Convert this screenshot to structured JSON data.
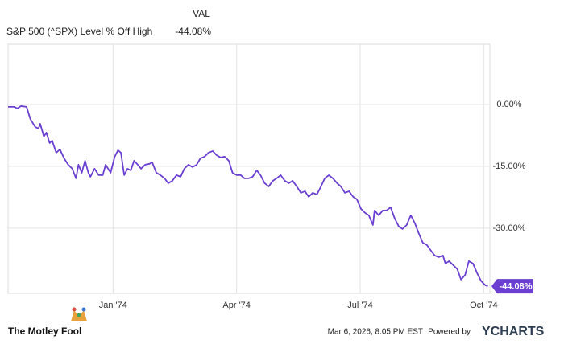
{
  "chart_data": {
    "type": "line",
    "legend_header": "VAL",
    "series": [
      {
        "name": "S&P 500 (^SPX) Level % Off High",
        "color": "#6a3fd1",
        "latest_label": "-44.08%",
        "x": [
          -2.55,
          -2.4,
          -2.32,
          -2.24,
          -2.1,
          -2.01,
          -1.89,
          -1.81,
          -1.77,
          -1.68,
          -1.62,
          -1.54,
          -1.48,
          -1.38,
          -1.29,
          -1.19,
          -1.09,
          -0.99,
          -0.9,
          -0.84,
          -0.76,
          -0.68,
          -0.6,
          -0.55,
          -0.45,
          -0.35,
          -0.25,
          -0.18,
          -0.06,
          0.04,
          0.12,
          0.19,
          0.27,
          0.35,
          0.43,
          0.51,
          0.6,
          0.68,
          0.78,
          0.88,
          0.95,
          1.05,
          1.15,
          1.25,
          1.34,
          1.44,
          1.54,
          1.64,
          1.73,
          1.83,
          1.93,
          2.03,
          2.12,
          2.22,
          2.32,
          2.42,
          2.51,
          2.61,
          2.71,
          2.81,
          2.9,
          3.0,
          3.1,
          3.19,
          3.29,
          3.39,
          3.49,
          3.58,
          3.68,
          3.78,
          3.88,
          3.97,
          4.07,
          4.17,
          4.27,
          4.36,
          4.46,
          4.56,
          4.66,
          4.75,
          4.85,
          4.95,
          5.05,
          5.14,
          5.24,
          5.34,
          5.44,
          5.53,
          5.63,
          5.73,
          5.83,
          5.92,
          6.02,
          6.12,
          6.21,
          6.31,
          6.35,
          6.45,
          6.55,
          6.64,
          6.74,
          6.84,
          6.94,
          7.03,
          7.13,
          7.23,
          7.33,
          7.42,
          7.52,
          7.62,
          7.72,
          7.81,
          7.91,
          8.01,
          8.07,
          8.16,
          8.26,
          8.36,
          8.45,
          8.55,
          8.64,
          8.74,
          8.84,
          8.94,
          9.04,
          9.1
        ],
        "values": [
          -0.58,
          -0.58,
          -0.97,
          -0.39,
          -0.58,
          -3.51,
          -5.45,
          -5.84,
          -4.68,
          -7.79,
          -6.82,
          -9.35,
          -8.77,
          -11.69,
          -10.91,
          -13.05,
          -14.61,
          -15.58,
          -17.92,
          -14.61,
          -16.56,
          -13.64,
          -16.56,
          -17.53,
          -15.58,
          -17.14,
          -17.14,
          -14.61,
          -16.56,
          -12.66,
          -11.1,
          -11.69,
          -17.14,
          -15.58,
          -15.97,
          -13.64,
          -14.61,
          -15.58,
          -14.61,
          -14.42,
          -14.03,
          -16.56,
          -17.14,
          -17.92,
          -19.09,
          -18.51,
          -17.14,
          -17.53,
          -15.58,
          -14.61,
          -15.19,
          -14.61,
          -13.05,
          -12.66,
          -11.69,
          -11.3,
          -12.27,
          -12.86,
          -12.66,
          -13.64,
          -16.56,
          -17.14,
          -17.14,
          -17.92,
          -17.92,
          -17.53,
          -15.97,
          -17.14,
          -19.09,
          -19.87,
          -18.51,
          -17.92,
          -17.14,
          -18.51,
          -19.09,
          -18.51,
          -19.87,
          -21.43,
          -21.04,
          -22.4,
          -21.43,
          -21.82,
          -19.87,
          -17.92,
          -17.14,
          -17.92,
          -19.09,
          -19.87,
          -21.43,
          -21.04,
          -22.4,
          -22.99,
          -25.32,
          -26.3,
          -26.88,
          -29.22,
          -25.71,
          -26.88,
          -25.71,
          -25.71,
          -24.94,
          -27.66,
          -29.61,
          -30.19,
          -29.22,
          -26.88,
          -28.83,
          -31.17,
          -33.51,
          -34.09,
          -35.45,
          -36.62,
          -37.01,
          -36.62,
          -38.57,
          -37.99,
          -38.96,
          -39.94,
          -42.47,
          -41.3,
          -37.99,
          -38.57,
          -40.91,
          -42.86,
          -43.83,
          -44.08
        ]
      }
    ],
    "xlim": [
      -2.55,
      9.15
    ],
    "xticks": [
      {
        "value": 0,
        "label": "Jan '74"
      },
      {
        "value": 3,
        "label": "Apr '74"
      },
      {
        "value": 6,
        "label": "Jul '74"
      },
      {
        "value": 9,
        "label": "Oct '74"
      }
    ],
    "ylim": [
      -45.8,
      14.6
    ],
    "yticks": [
      {
        "value": 0,
        "label": "0.00%"
      },
      {
        "value": -15,
        "label": "-15.00%"
      },
      {
        "value": -30,
        "label": "-30.00%"
      }
    ],
    "grid": true,
    "footer": {
      "brand": "The Motley Fool",
      "timestamp": "Mar 6, 2026, 8:05 PM EST",
      "powered_by": "Powered by",
      "provider": "YCHARTS"
    }
  }
}
